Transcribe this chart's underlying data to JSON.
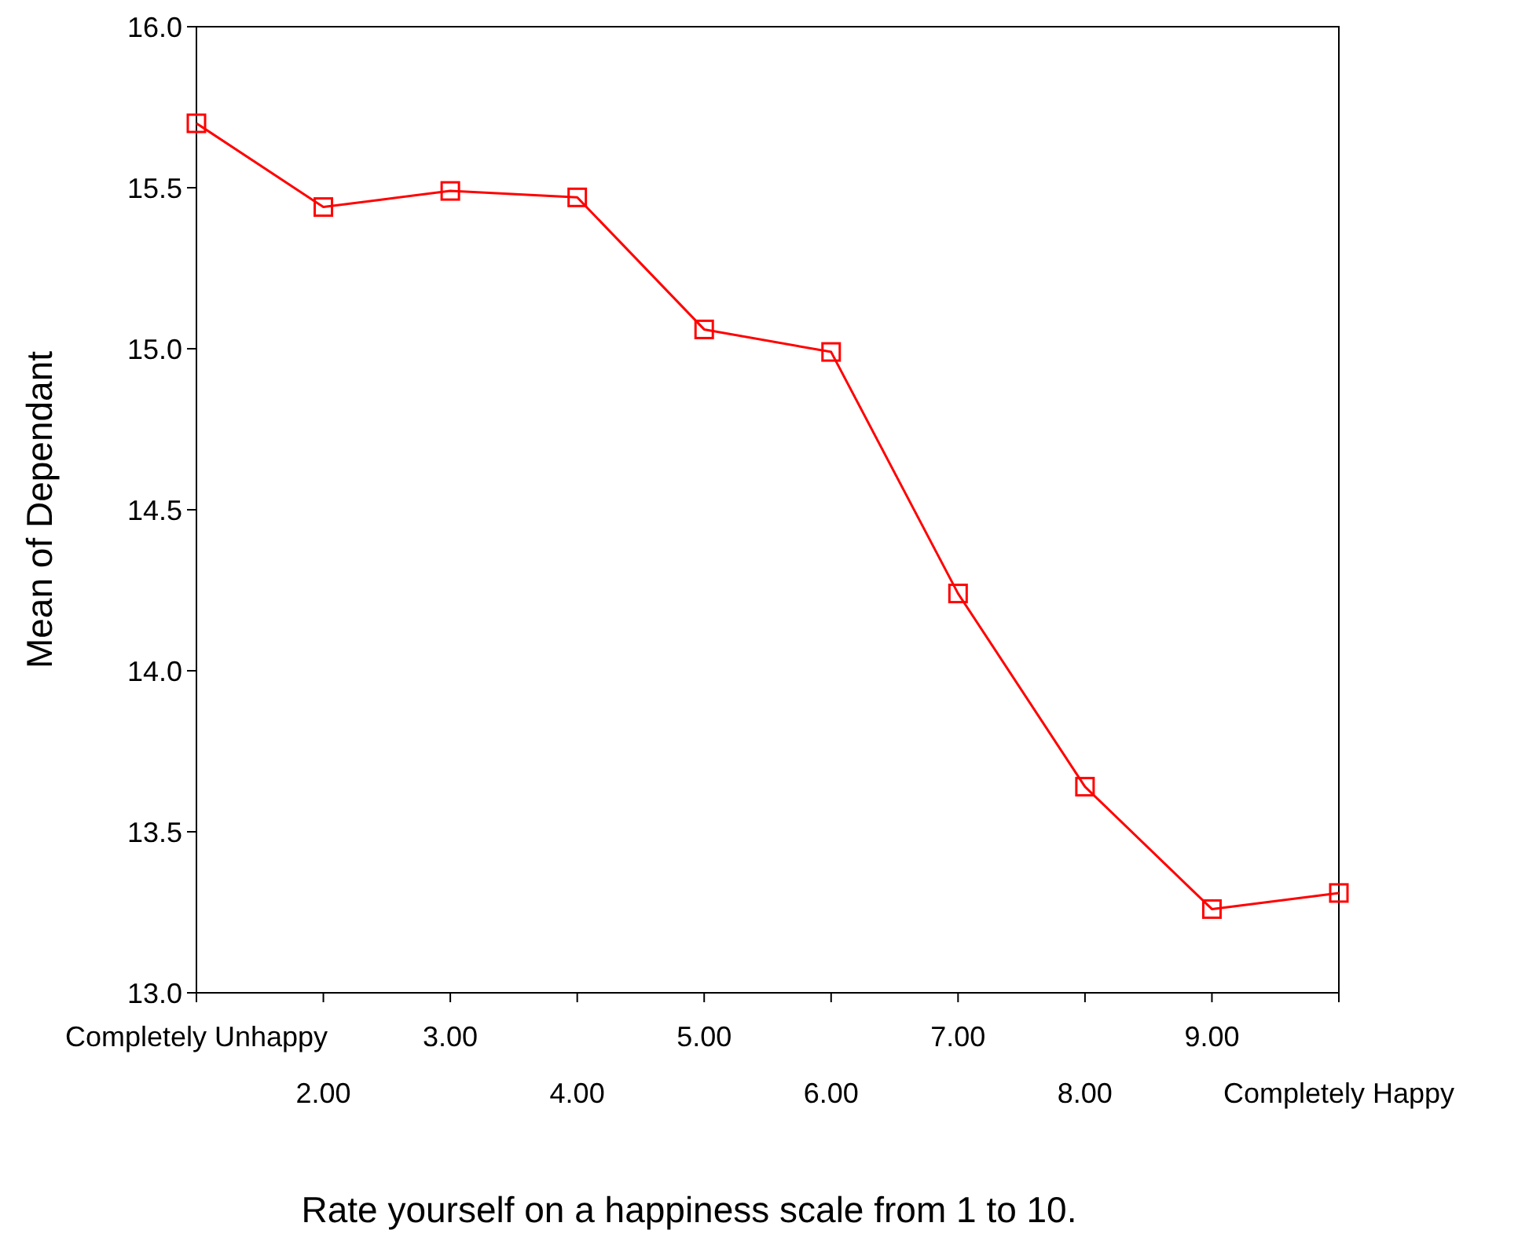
{
  "chart_data": {
    "type": "line",
    "xlabel": "Rate yourself on a happiness scale from 1 to 10.",
    "ylabel": "Mean of Dependant",
    "categories": [
      "Completely Unhappy",
      "2.00",
      "3.00",
      "4.00",
      "5.00",
      "6.00",
      "7.00",
      "8.00",
      "9.00",
      "Completely Happy"
    ],
    "series": [
      {
        "color": "#ff0000",
        "values": [
          15.7,
          15.44,
          15.49,
          15.47,
          15.06,
          14.99,
          14.24,
          13.64,
          13.26,
          13.31
        ]
      }
    ],
    "ylim": [
      13,
      16
    ],
    "yticks": [
      {
        "value": 13,
        "label": "13.0"
      },
      {
        "value": 13.5,
        "label": "13.5"
      },
      {
        "value": 14,
        "label": "14.0"
      },
      {
        "value": 14.5,
        "label": "14.5"
      },
      {
        "value": 15,
        "label": "15.0"
      },
      {
        "value": 15.5,
        "label": "15.5"
      },
      {
        "value": 16,
        "label": "16.0"
      }
    ],
    "marker": "square",
    "line_style": "solid"
  }
}
